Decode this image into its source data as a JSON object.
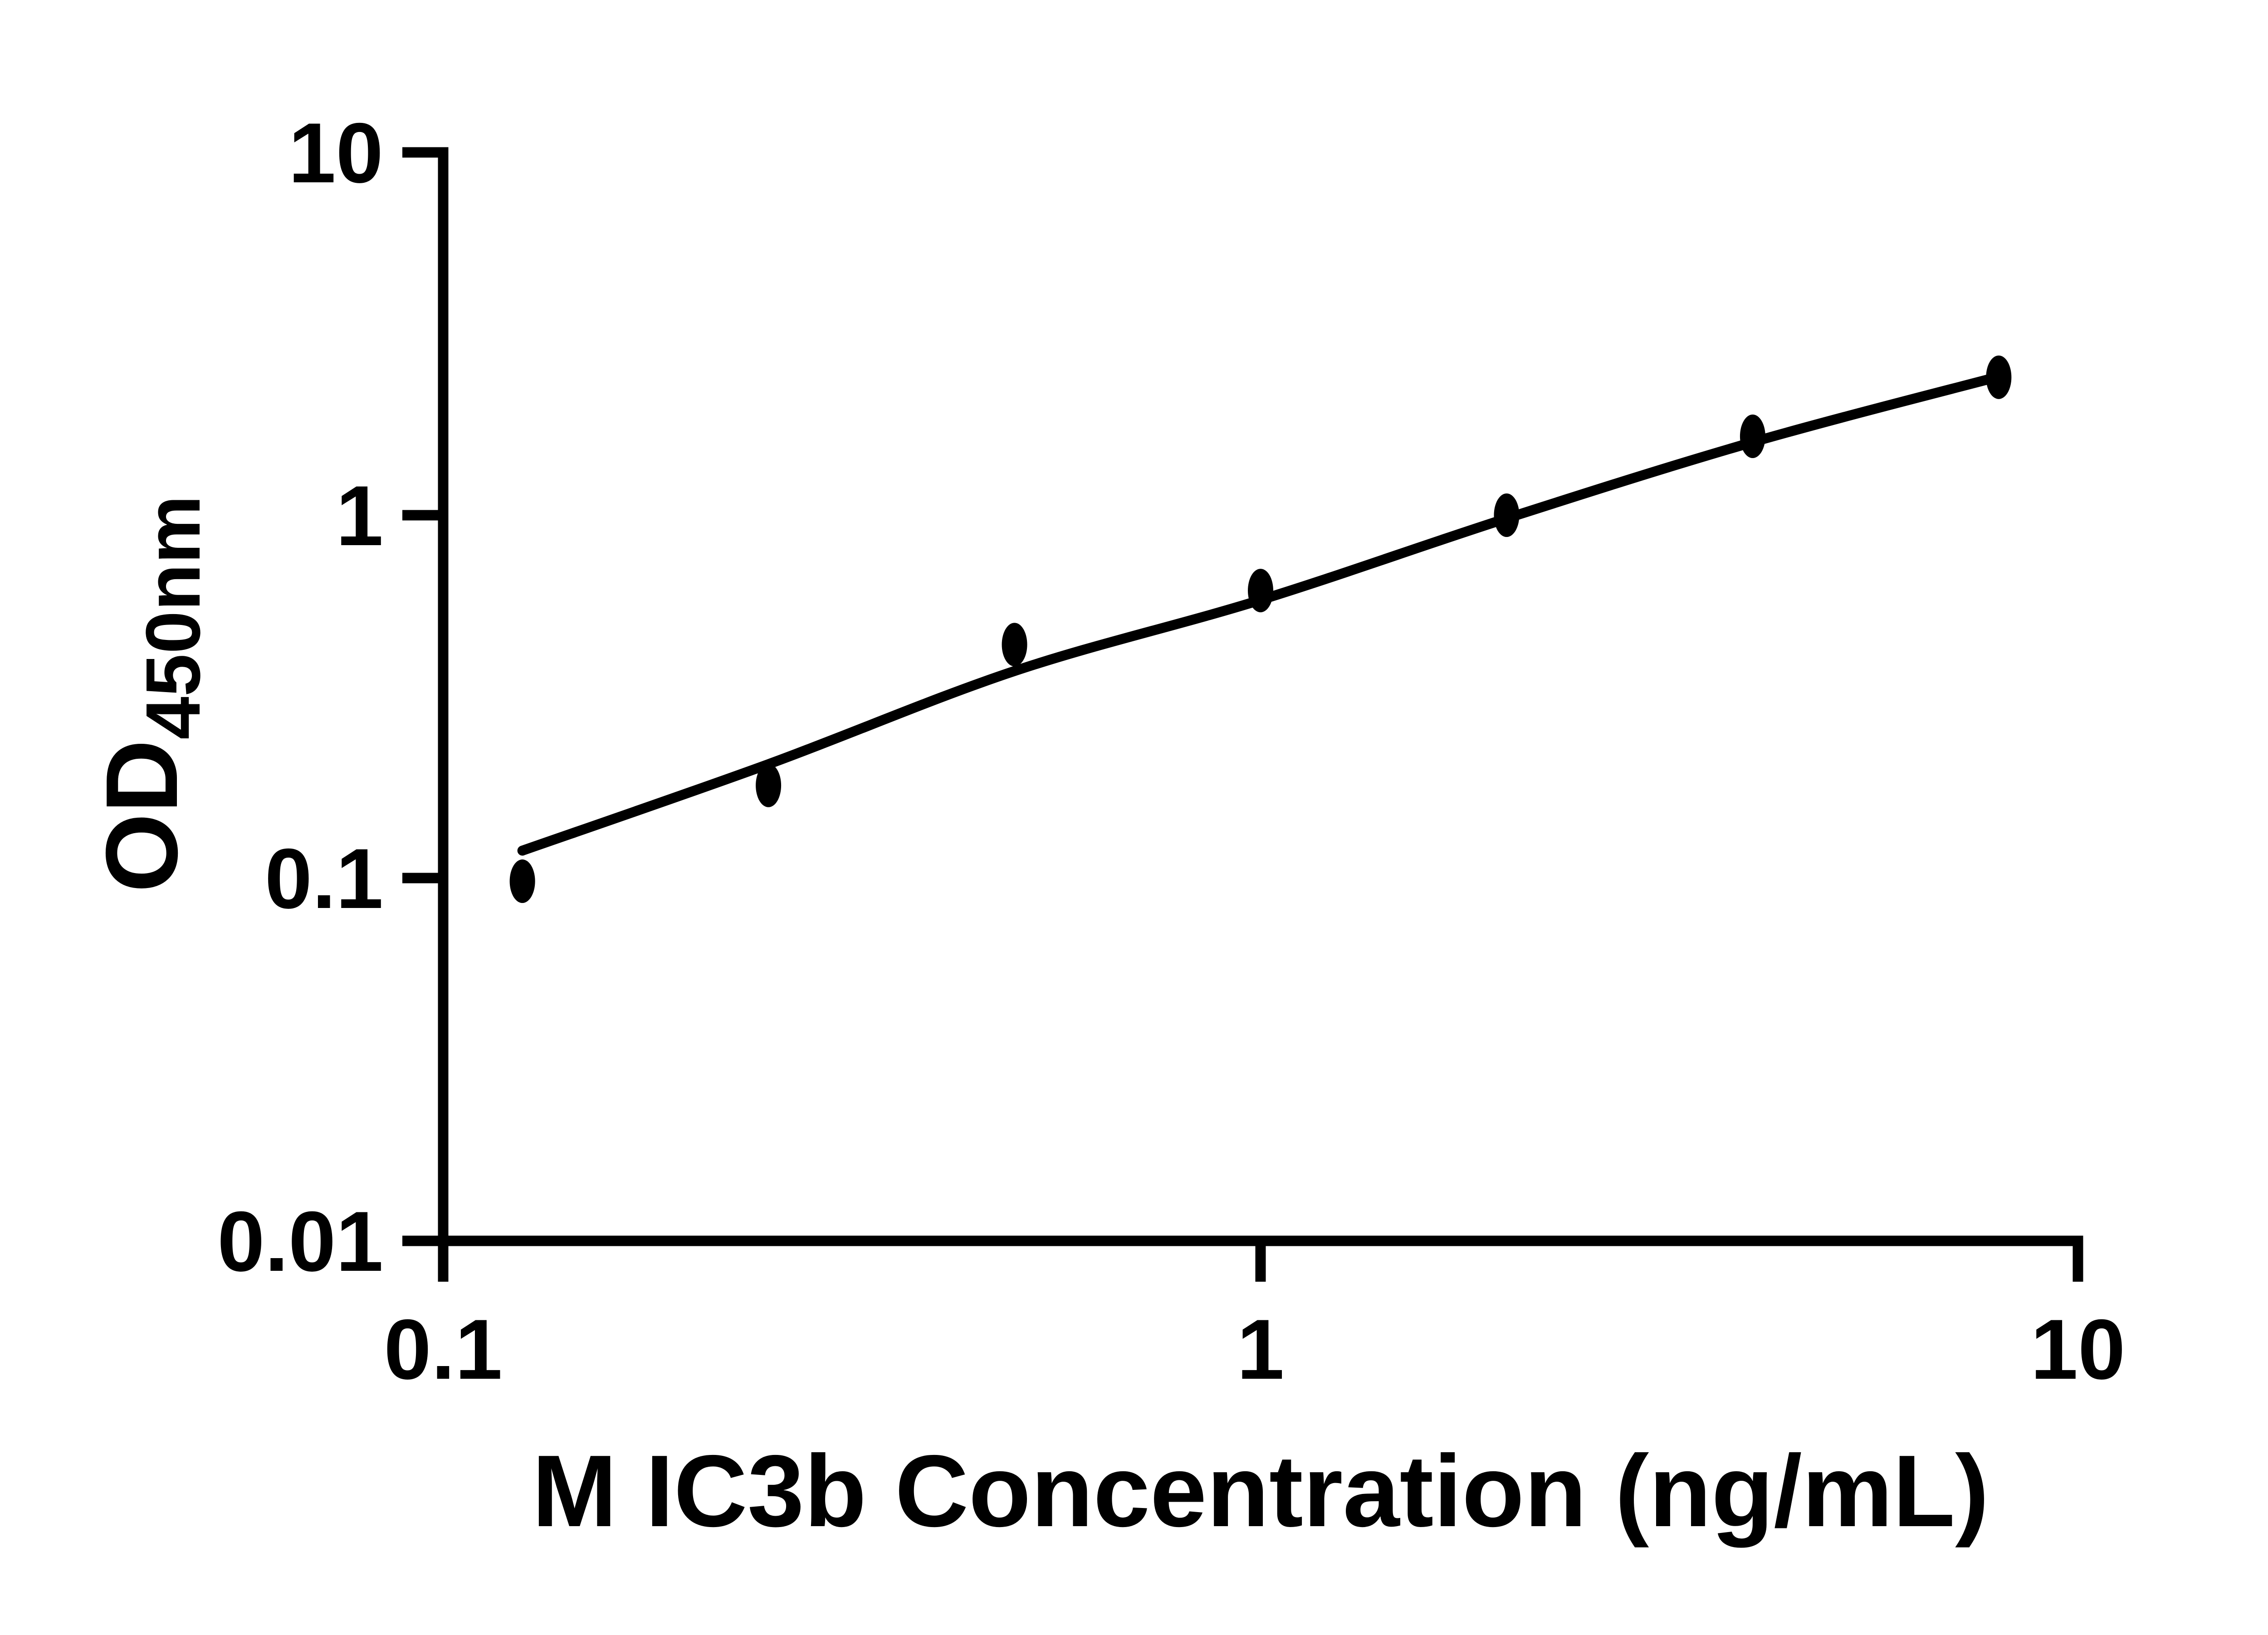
{
  "figure": {
    "background_color": "#ffffff",
    "ink_color": "#000000",
    "description": "ELISA standard curve, log-log scatter plot with fitted curve"
  },
  "chart_data": {
    "type": "scatter",
    "title": "",
    "xlabel": "M IC3b Concentration (ng/mL)",
    "ylabel_base": "OD",
    "ylabel_subscript": "450nm",
    "x_scale": "log",
    "y_scale": "log",
    "xlim": [
      0.1,
      10
    ],
    "ylim": [
      0.01,
      10
    ],
    "x_ticks": {
      "values": [
        0.1,
        1,
        10
      ],
      "labels": [
        "0.1",
        "1",
        "10"
      ]
    },
    "y_ticks": {
      "values": [
        0.01,
        0.1,
        1,
        10
      ],
      "labels": [
        "0.01",
        "0.1",
        "1",
        "10"
      ]
    },
    "grid": false,
    "legend": false,
    "marker_style": "filled-ellipse",
    "series": [
      {
        "name": "standard-curve-points",
        "x": [
          0.125,
          0.25,
          0.5,
          1,
          2,
          4,
          8
        ],
        "y": [
          0.098,
          0.18,
          0.44,
          0.62,
          1.0,
          1.65,
          2.4
        ]
      }
    ],
    "fit_curve": {
      "name": "fitted-curve",
      "x": [
        0.125,
        0.25,
        0.5,
        1,
        2,
        4,
        8
      ],
      "y": [
        0.119,
        0.206,
        0.372,
        0.584,
        0.98,
        1.59,
        2.41
      ]
    }
  }
}
